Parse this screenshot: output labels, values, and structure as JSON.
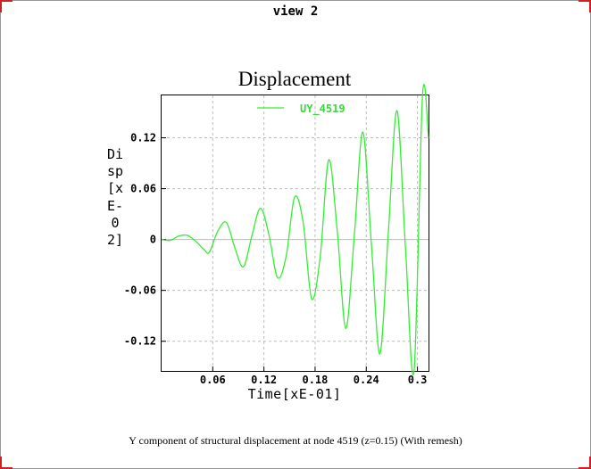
{
  "window": {
    "title": "view 2"
  },
  "caption": "Y component of structural displacement at node 4519 (z=0.15) (With remesh)",
  "colors": {
    "series": "#33ee33",
    "grid": "#bbbbbb",
    "corner": "#cc2222"
  },
  "chart_data": {
    "type": "line",
    "title": "Displacement",
    "xlabel": "Time[xE-01]",
    "ylabel": "Disp[xE-02]",
    "xlim": [
      0.0,
      0.313
    ],
    "ylim": [
      -0.155,
      0.17
    ],
    "xticks": [
      {
        "value": 0.06,
        "label": "0.06"
      },
      {
        "value": 0.12,
        "label": "0.12"
      },
      {
        "value": 0.18,
        "label": "0.18"
      },
      {
        "value": 0.24,
        "label": "0.24"
      },
      {
        "value": 0.3,
        "label": "0.3"
      }
    ],
    "yticks": [
      {
        "value": 0.12,
        "label": "0.12"
      },
      {
        "value": 0.06,
        "label": "0.06"
      },
      {
        "value": 0,
        "label": "0"
      },
      {
        "value": -0.06,
        "label": "-0.06"
      },
      {
        "value": -0.12,
        "label": "-0.12"
      }
    ],
    "grid": true,
    "legend_position": "top",
    "series": [
      {
        "name": "UY_4519",
        "x": [
          0,
          0.01,
          0.02,
          0.03,
          0.04,
          0.05,
          0.056,
          0.066,
          0.076,
          0.086,
          0.096,
          0.106,
          0.116,
          0.126,
          0.136,
          0.146,
          0.156,
          0.166,
          0.176,
          0.186,
          0.196,
          0.206,
          0.216,
          0.226,
          0.236,
          0.246,
          0.256,
          0.266,
          0.276,
          0.286,
          0.296,
          0.306,
          0.313
        ],
        "y": [
          0,
          -0.001,
          0.004,
          0.005,
          -0.002,
          -0.012,
          -0.015,
          0.01,
          0.02,
          -0.01,
          -0.032,
          0.005,
          0.037,
          0.005,
          -0.045,
          -0.02,
          0.05,
          0.02,
          -0.07,
          -0.02,
          0.094,
          0.01,
          -0.105,
          0.005,
          0.127,
          -0.005,
          -0.135,
          0.01,
          0.152,
          -0.01,
          -0.155,
          0.17,
          0.119
        ]
      }
    ]
  }
}
